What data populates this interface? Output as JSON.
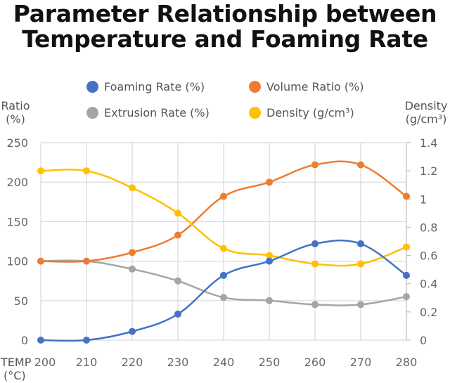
{
  "chart_data": {
    "type": "line",
    "title_line1": "Parameter Relationship between",
    "title_line2": "Temperature and Foaming Rate",
    "xlabel_line1": "TEMP",
    "xlabel_line2": "(°C)",
    "ylabel_left_line1": "Ratio",
    "ylabel_left_line2": "(%)",
    "ylabel_right_line1": "Density",
    "ylabel_right_line2": "(g/cm³)",
    "x": [
      200,
      210,
      220,
      230,
      240,
      250,
      260,
      270,
      280
    ],
    "x_tick_labels": [
      "200",
      "210",
      "220",
      "230",
      "240",
      "250",
      "260",
      "270",
      "280"
    ],
    "ylim_left": [
      0,
      250
    ],
    "yticks_left": [
      "0",
      "50",
      "100",
      "150",
      "200",
      "250"
    ],
    "ylim_right": [
      0,
      1.4
    ],
    "yticks_right": [
      "0",
      "0.2",
      "0.4",
      "0.6",
      "0.8",
      "1",
      "1.2",
      "1.4"
    ],
    "grid": true,
    "legend_position": "top",
    "series": [
      {
        "name": "Foaming Rate (%)",
        "axis": "left",
        "color": "#4472C4",
        "values": [
          0,
          0,
          11,
          33,
          82,
          100,
          122,
          122,
          82
        ]
      },
      {
        "name": "Volume Ratio (%)",
        "axis": "left",
        "color": "#ED7D31",
        "values": [
          100,
          100,
          111,
          133,
          182,
          200,
          222,
          222,
          182
        ]
      },
      {
        "name": "Extrusion Rate (%)",
        "axis": "left",
        "color": "#A5A5A5",
        "values": [
          100,
          100,
          90,
          75,
          54,
          50,
          45,
          45,
          55
        ]
      },
      {
        "name": "Density (g/cm³)",
        "axis": "right",
        "color": "#FFC000",
        "values": [
          1.2,
          1.2,
          1.08,
          0.9,
          0.65,
          0.6,
          0.54,
          0.54,
          0.66
        ]
      }
    ]
  }
}
